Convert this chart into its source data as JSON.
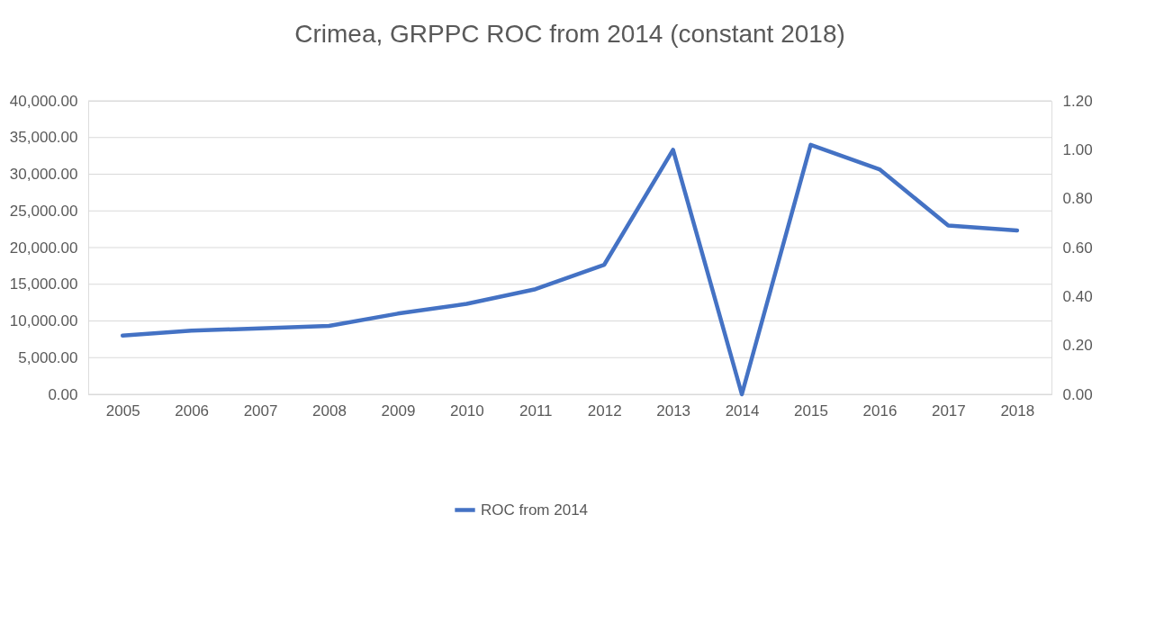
{
  "chart_data": {
    "type": "line",
    "title": "Crimea, GRPPC ROC from 2014 (constant 2018)",
    "categories": [
      "2005",
      "2006",
      "2007",
      "2008",
      "2009",
      "2010",
      "2011",
      "2012",
      "2013",
      "2014",
      "2015",
      "2016",
      "2017",
      "2018"
    ],
    "series": [
      {
        "name": "ROC from 2014",
        "color": "#4472c4",
        "axis": "y2",
        "values": [
          0.24,
          0.26,
          0.27,
          0.28,
          0.33,
          0.37,
          0.43,
          0.53,
          1.0,
          0.0,
          1.02,
          0.92,
          0.69,
          0.67
        ]
      }
    ],
    "ylim": [
      0,
      40000
    ],
    "yticks": [
      {
        "value": 0,
        "label": "0.00"
      },
      {
        "value": 5000,
        "label": "5,000.00"
      },
      {
        "value": 10000,
        "label": "10,000.00"
      },
      {
        "value": 15000,
        "label": "15,000.00"
      },
      {
        "value": 20000,
        "label": "20,000.00"
      },
      {
        "value": 25000,
        "label": "25,000.00"
      },
      {
        "value": 30000,
        "label": "30,000.00"
      },
      {
        "value": 35000,
        "label": "35,000.00"
      },
      {
        "value": 40000,
        "label": "40,000.00"
      }
    ],
    "y2lim": [
      0,
      1.2
    ],
    "y2ticks": [
      {
        "value": 0,
        "label": "0.00"
      },
      {
        "value": 0.2,
        "label": "0.20"
      },
      {
        "value": 0.4,
        "label": "0.40"
      },
      {
        "value": 0.6,
        "label": "0.60"
      },
      {
        "value": 0.8,
        "label": "0.80"
      },
      {
        "value": 1.0,
        "label": "1.00"
      },
      {
        "value": 1.2,
        "label": "1.20"
      }
    ],
    "grid": "y",
    "legend": "bottom",
    "marker": "none",
    "line_style": "solid"
  }
}
